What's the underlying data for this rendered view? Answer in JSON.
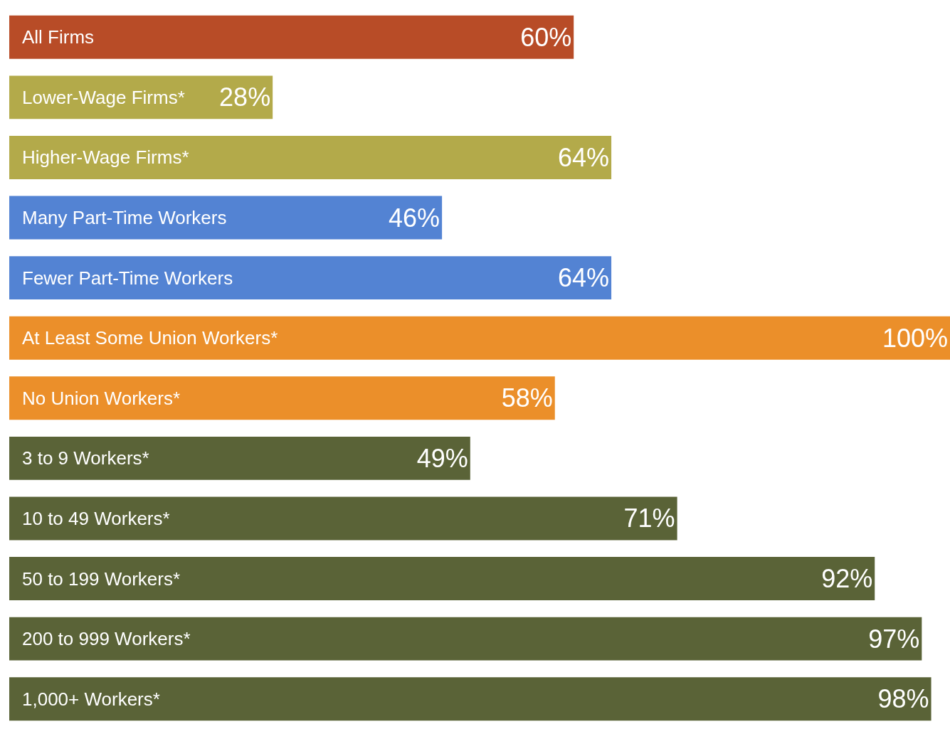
{
  "chart_data": {
    "type": "bar",
    "orientation": "horizontal",
    "categories": [
      "All Firms",
      "Lower-Wage Firms*",
      "Higher-Wage Firms*",
      "Many Part-Time Workers",
      "Fewer Part-Time Workers",
      "At Least Some Union Workers*",
      "No Union Workers*",
      "3 to 9 Workers*",
      "10 to 49 Workers*",
      "50 to 199 Workers*",
      "200 to 999 Workers*",
      "1,000+ Workers*"
    ],
    "values": [
      60,
      28,
      64,
      46,
      64,
      100,
      58,
      49,
      71,
      92,
      97,
      98
    ],
    "value_labels": [
      "60%",
      "28%",
      "64%",
      "46%",
      "64%",
      "100%",
      "58%",
      "49%",
      "71%",
      "92%",
      "97%",
      "98%"
    ],
    "colors": [
      "#b84c27",
      "#b3aa4a",
      "#b3aa4a",
      "#5383d3",
      "#5383d3",
      "#eb8f2a",
      "#eb8f2a",
      "#5a6337",
      "#5a6337",
      "#5a6337",
      "#5a6337",
      "#5a6337"
    ],
    "legend": false,
    "tick_labels": false
  }
}
